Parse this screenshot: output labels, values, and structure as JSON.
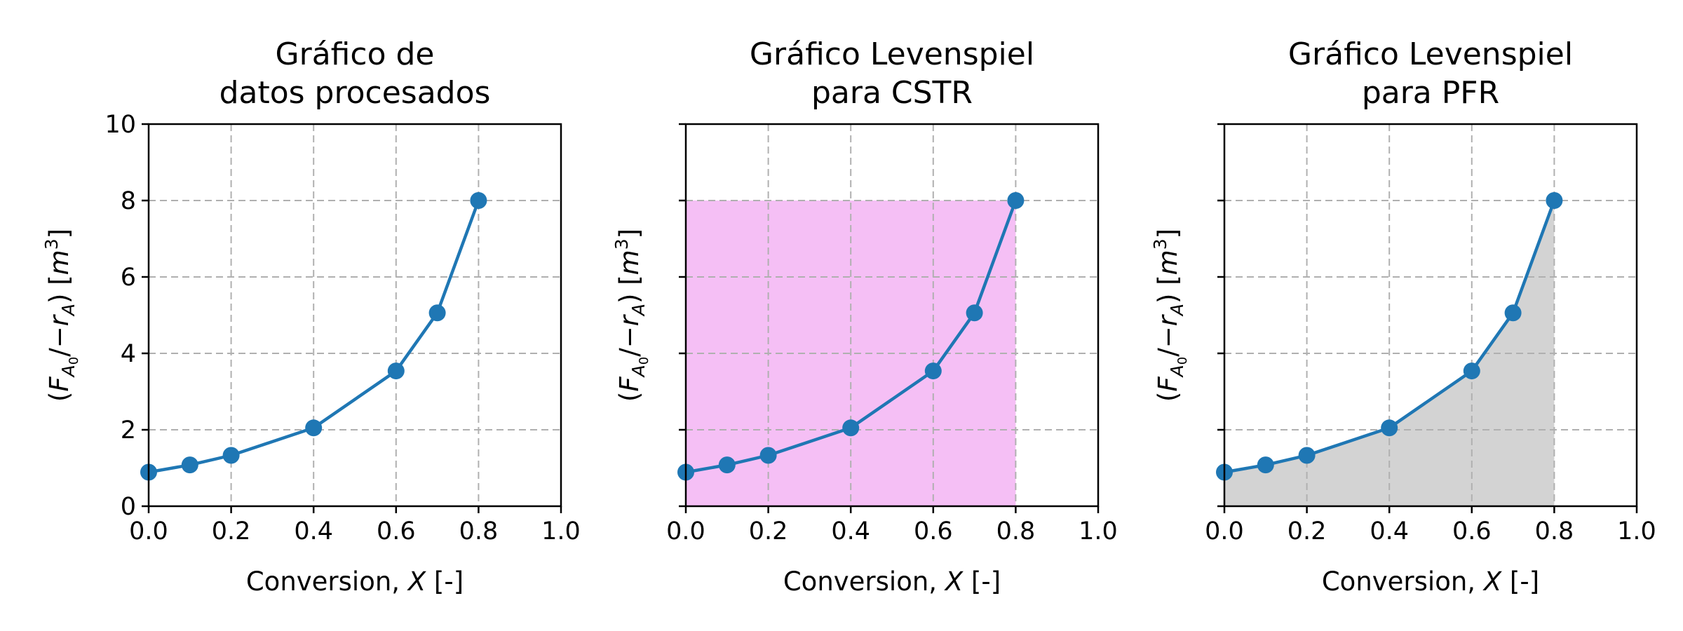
{
  "chart_data": [
    {
      "type": "line",
      "title_lines": [
        "Gráfico de",
        "datos procesados"
      ],
      "xlabel": "Conversion, X [-]",
      "ylabel": "(F_A0/−r_A)  [m^3]",
      "xlim": [
        0.0,
        1.0
      ],
      "ylim": [
        0,
        10
      ],
      "xticks": [
        "0.0",
        "0.2",
        "0.4",
        "0.6",
        "0.8",
        "1.0"
      ],
      "yticks": [
        "0",
        "2",
        "4",
        "6",
        "8",
        "10"
      ],
      "show_yticklabels": true,
      "grid": true,
      "fill": "none",
      "x": [
        0.0,
        0.1,
        0.2,
        0.4,
        0.6,
        0.7,
        0.8
      ],
      "y": [
        0.89,
        1.08,
        1.33,
        2.05,
        3.54,
        5.06,
        8.0
      ]
    },
    {
      "type": "line",
      "title_lines": [
        "Gráfico Levenspiel",
        "para CSTR"
      ],
      "xlabel": "Conversion, X [-]",
      "ylabel": "(F_A0/−r_A)  [m^3]",
      "xlim": [
        0.0,
        1.0
      ],
      "ylim": [
        0,
        10
      ],
      "xticks": [
        "0.0",
        "0.2",
        "0.4",
        "0.6",
        "0.8",
        "1.0"
      ],
      "yticks": [
        "0",
        "2",
        "4",
        "6",
        "8",
        "10"
      ],
      "show_yticklabels": false,
      "grid": true,
      "fill": "rectangle",
      "fill_color": "#f5bff5",
      "x": [
        0.0,
        0.1,
        0.2,
        0.4,
        0.6,
        0.7,
        0.8
      ],
      "y": [
        0.89,
        1.08,
        1.33,
        2.05,
        3.54,
        5.06,
        8.0
      ]
    },
    {
      "type": "area",
      "title_lines": [
        "Gráfico Levenspiel",
        "para PFR"
      ],
      "xlabel": "Conversion, X [-]",
      "ylabel": "(F_A0/−r_A)  [m^3]",
      "xlim": [
        0.0,
        1.0
      ],
      "ylim": [
        0,
        10
      ],
      "xticks": [
        "0.0",
        "0.2",
        "0.4",
        "0.6",
        "0.8",
        "1.0"
      ],
      "yticks": [
        "0",
        "2",
        "4",
        "6",
        "8",
        "10"
      ],
      "show_yticklabels": false,
      "grid": true,
      "fill": "under-curve",
      "fill_color": "#d3d3d3",
      "x": [
        0.0,
        0.1,
        0.2,
        0.4,
        0.6,
        0.7,
        0.8
      ],
      "y": [
        0.89,
        1.08,
        1.33,
        2.05,
        3.54,
        5.06,
        8.0
      ]
    }
  ],
  "colors": {
    "series": "#1f77b4",
    "grid": "#b0b0b0"
  }
}
